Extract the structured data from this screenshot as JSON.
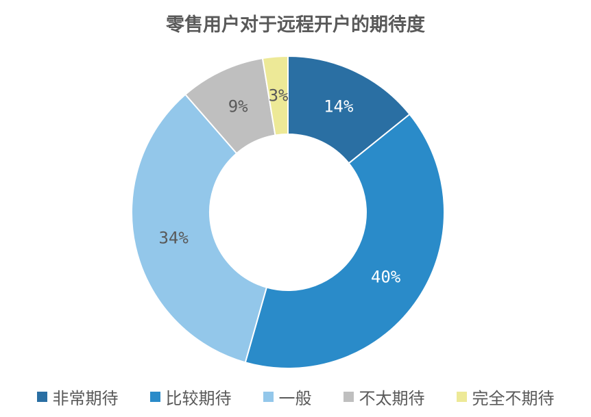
{
  "chart_data": {
    "type": "pie",
    "donut": true,
    "title": "零售用户对于远程开户的期待度",
    "categories": [
      "非常期待",
      "比较期待",
      "一般",
      "不太期待",
      "完全不期待"
    ],
    "values": [
      14.2,
      40.2,
      34.2,
      8.8,
      2.6
    ],
    "labels": [
      "14%",
      "40%",
      "34%",
      "9%",
      "3%"
    ],
    "colors": [
      "#2a6fa3",
      "#2a8bc9",
      "#93c7ea",
      "#bfbfbf",
      "#ede997"
    ],
    "label_colors": [
      "#ffffff",
      "#ffffff",
      "#595959",
      "#595959",
      "#595959"
    ],
    "legend_position": "bottom"
  }
}
